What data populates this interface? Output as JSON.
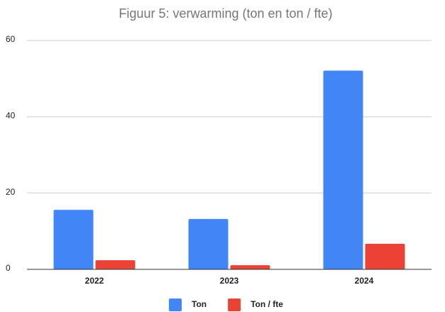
{
  "chart_data": {
    "type": "bar",
    "title": "Figuur 5: verwarming (ton en ton / fte)",
    "categories": [
      "2022",
      "2023",
      "2024"
    ],
    "series": [
      {
        "name": "Ton",
        "color": "#4285f4",
        "values": [
          15.6,
          13.2,
          52.1
        ]
      },
      {
        "name": "Ton / fte",
        "color": "#ea4335",
        "values": [
          2.4,
          1.1,
          6.7
        ]
      }
    ],
    "ylim": [
      0,
      60
    ],
    "yticks": [
      0,
      20,
      40,
      60
    ],
    "grid": true,
    "legend": "bottom"
  }
}
